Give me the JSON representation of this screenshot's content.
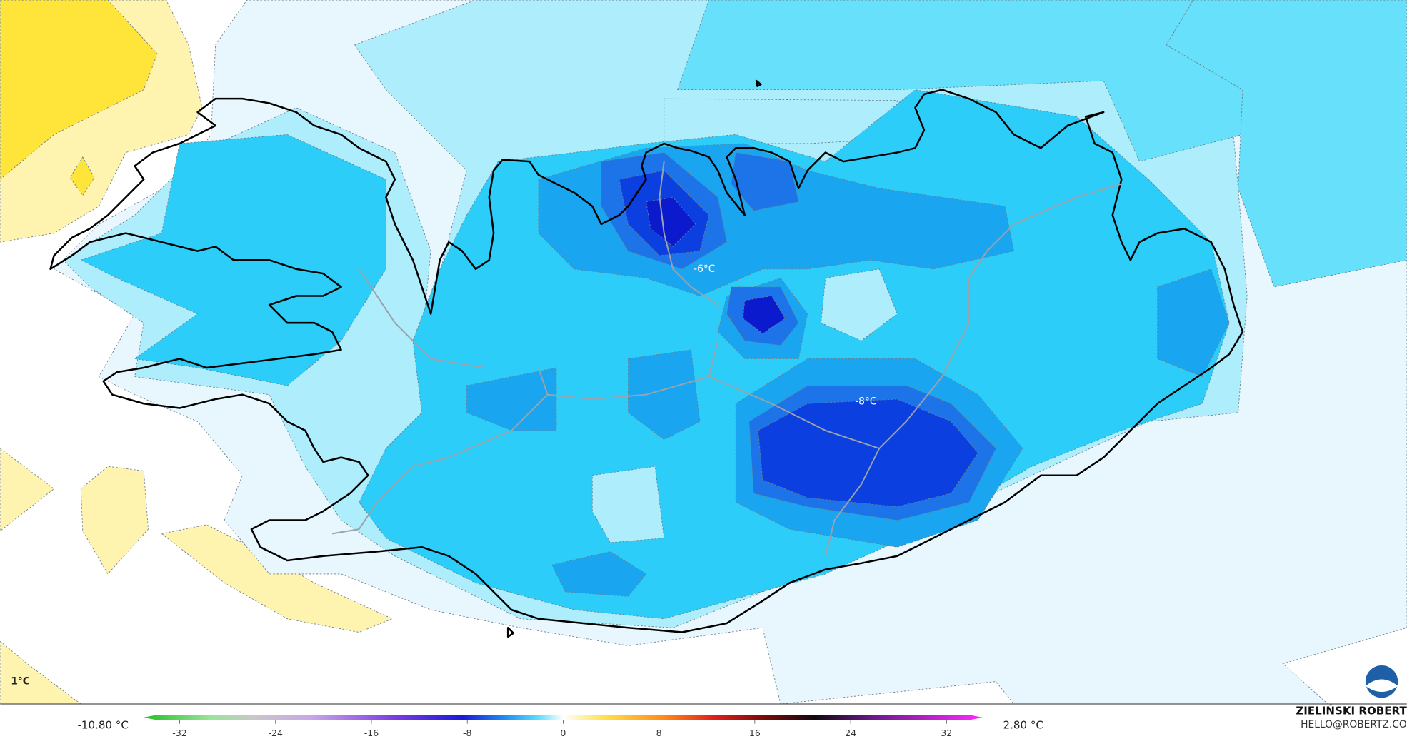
{
  "map": {
    "labels": [
      {
        "text": "1°C"
      },
      {
        "text": "-6°C"
      },
      {
        "text": "-8°C"
      }
    ]
  },
  "legend": {
    "min_label": "-10.80 °C",
    "max_label": "2.80 °C",
    "lim": [
      -35,
      35
    ],
    "ticks": [
      -32,
      -24,
      -16,
      -8,
      0,
      8,
      16,
      24,
      32
    ]
  },
  "credit": {
    "name": "ZIELIŃSKI ROBERT",
    "contact": "HELLO@ROBERTZ.CO"
  }
}
